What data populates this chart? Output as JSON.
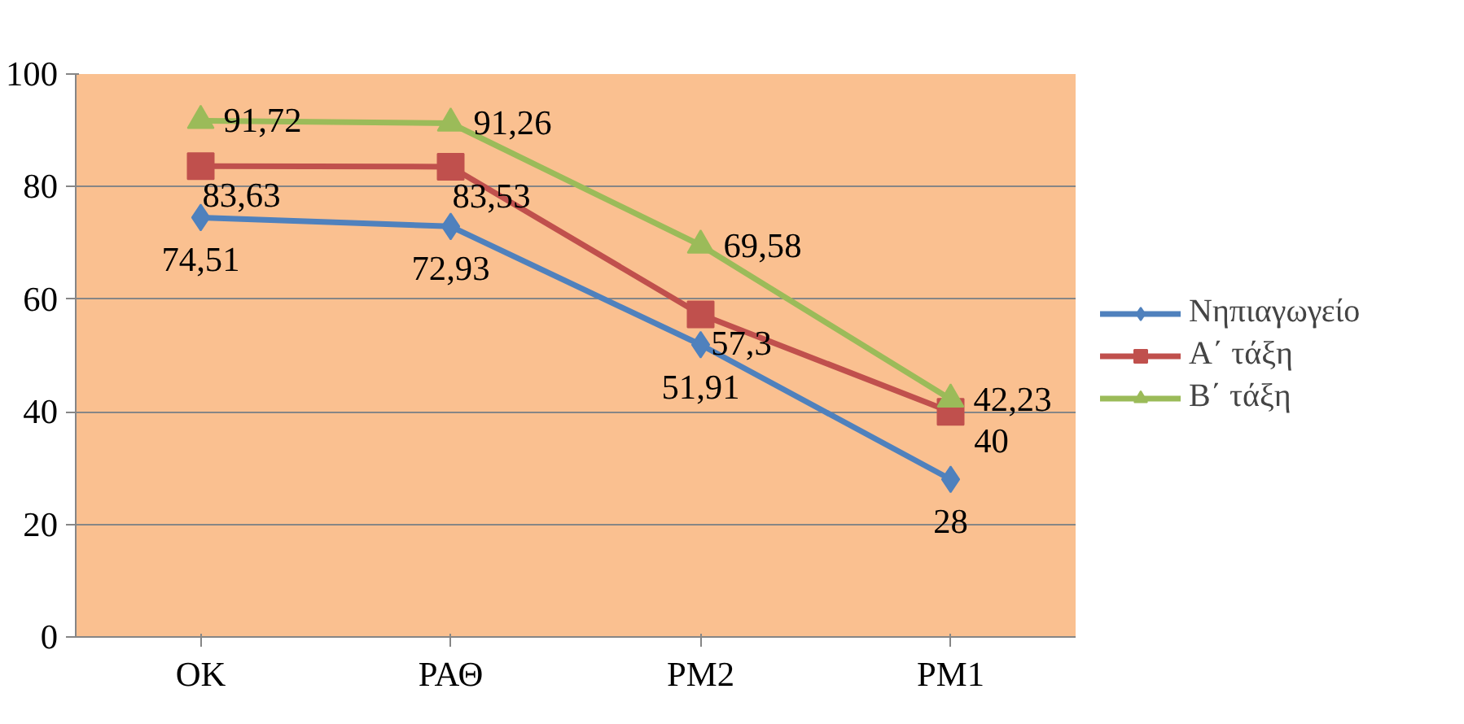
{
  "chart_data": {
    "type": "line",
    "categories": [
      "OK",
      "ΡΑΘ",
      "ΡΜ2",
      "ΡΜ1"
    ],
    "series": [
      {
        "name": "Νηπιαγωγείο",
        "color": "#4f81bd",
        "marker": "diamond",
        "values": [
          74.51,
          72.93,
          51.91,
          28
        ],
        "value_labels": [
          "74,51",
          "72,93",
          "51,91",
          "28"
        ]
      },
      {
        "name": "Α΄ τάξη",
        "color": "#c0504d",
        "marker": "square",
        "values": [
          83.63,
          83.53,
          57.3,
          40
        ],
        "value_labels": [
          "83,63",
          "83,53",
          "57,3",
          "40"
        ]
      },
      {
        "name": "Β΄ τάξη",
        "color": "#9bbb59",
        "marker": "triangle",
        "values": [
          91.72,
          91.26,
          69.58,
          42.23
        ],
        "value_labels": [
          "91,72",
          "91,26",
          "69,58",
          "42,23"
        ]
      }
    ],
    "ylim": [
      0,
      100
    ],
    "yticks": [
      0,
      20,
      40,
      60,
      80,
      100
    ],
    "grid": "y",
    "legend": "right"
  }
}
